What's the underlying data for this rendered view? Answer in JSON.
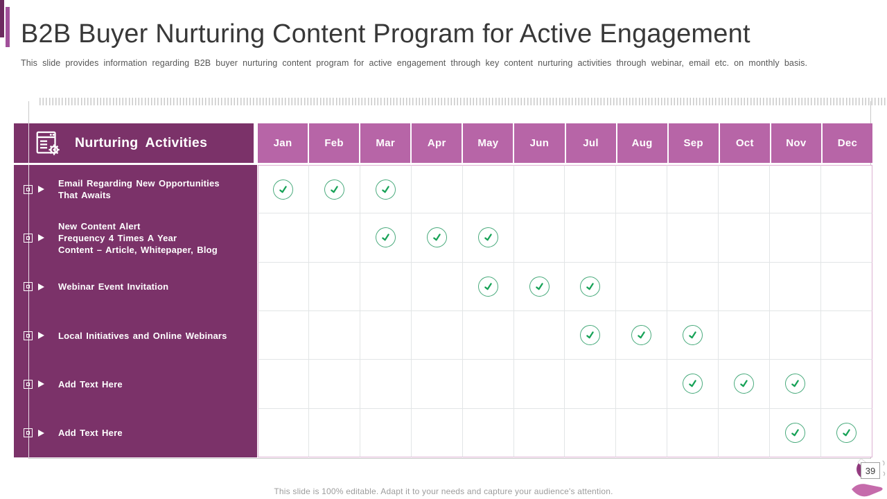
{
  "slide": {
    "title": "B2B Buyer Nurturing Content Program for Active Engagement",
    "subtitle": "This slide provides information regarding B2B buyer nurturing content program for active engagement through key content nurturing activities through webinar, email etc. on monthly basis.",
    "footer": "This slide is 100% editable. Adapt it to your needs and capture your audience's attention.",
    "page_number": "39"
  },
  "table": {
    "header": "Nurturing Activities",
    "header_icon": "document-gear-icon",
    "months": [
      "Jan",
      "Feb",
      "Mar",
      "Apr",
      "May",
      "Jun",
      "Jul",
      "Aug",
      "Sep",
      "Oct",
      "Nov",
      "Dec"
    ],
    "rows": [
      {
        "label_lines": [
          "Email Regarding New Opportunities",
          "That Awaits"
        ],
        "checked_months": [
          "Jan",
          "Feb",
          "Mar"
        ]
      },
      {
        "label_lines": [
          "New Content Alert",
          "Frequency 4 Times A Year",
          "Content – Article, Whitepaper, Blog"
        ],
        "checked_months": [
          "Mar",
          "Apr",
          "May"
        ]
      },
      {
        "label_lines": [
          "Webinar Event Invitation"
        ],
        "checked_months": [
          "May",
          "Jun",
          "Jul"
        ]
      },
      {
        "label_lines": [
          "Local Initiatives and Online Webinars"
        ],
        "checked_months": [
          "Jul",
          "Aug",
          "Sep"
        ]
      },
      {
        "label_lines": [
          "Add Text Here"
        ],
        "checked_months": [
          "Sep",
          "Oct",
          "Nov"
        ]
      },
      {
        "label_lines": [
          "Add Text Here"
        ],
        "checked_months": [
          "Nov",
          "Dec"
        ]
      }
    ]
  },
  "colors": {
    "sidebar_purple": "#7b3269",
    "month_header_pink": "#b765a7",
    "accent_bar_dark": "#6d2a60",
    "accent_bar_light": "#a1509a",
    "check_green": "#17a257",
    "check_circle_green": "#4aab7d"
  }
}
